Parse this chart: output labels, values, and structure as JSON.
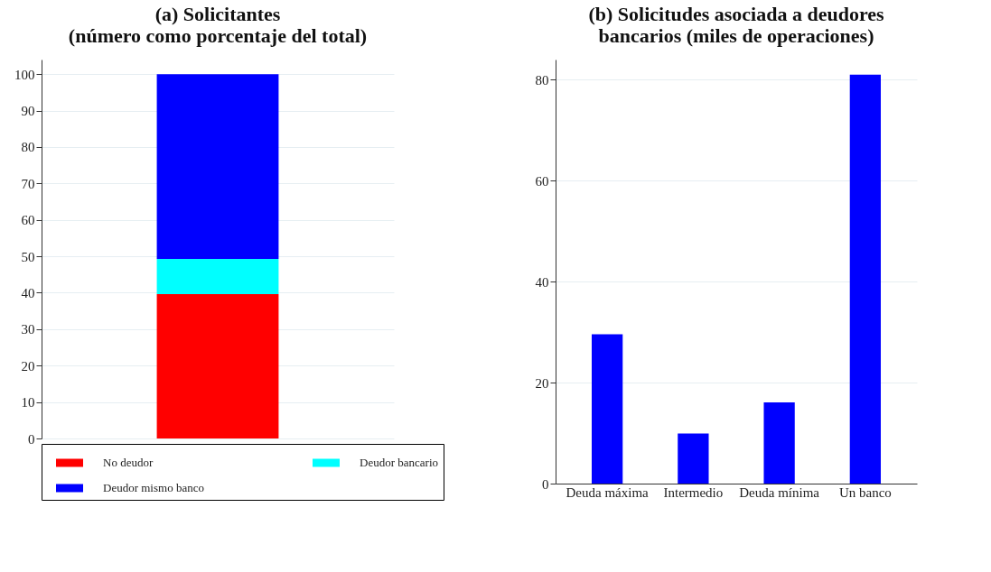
{
  "chart_data": [
    {
      "type": "bar",
      "title": "(a) Solicitantes\n(número como porcentaje del total)",
      "categories": [
        null
      ],
      "stacked": true,
      "series": [
        {
          "name": "No deudor",
          "color": "#ff0000",
          "values": [
            39.6
          ]
        },
        {
          "name": "Deudor bancario",
          "color": "#00ffff",
          "values": [
            9.7
          ]
        },
        {
          "name": "Deudor mismo banco",
          "color": "#0000ff",
          "values": [
            50.7
          ]
        }
      ],
      "ylim": [
        0,
        104
      ],
      "yticks": [
        0,
        10,
        20,
        30,
        40,
        50,
        60,
        70,
        80,
        90,
        100
      ],
      "grid": "y",
      "legend": "bottom",
      "tick_labels": "y"
    },
    {
      "type": "bar",
      "title": "(b) Solicitudes asociada a deudores\nbancarios (miles de operaciones)",
      "categories": [
        "Deuda máxima",
        "Intermedio",
        "Deuda mínima",
        "Un banco"
      ],
      "series": [
        {
          "color": "#0000ff",
          "values": [
            29.6,
            9.9,
            16.1,
            81.0
          ]
        }
      ],
      "ylim": [
        0,
        84
      ],
      "yticks": [
        0,
        20,
        40,
        60,
        80
      ],
      "grid": "y"
    }
  ]
}
